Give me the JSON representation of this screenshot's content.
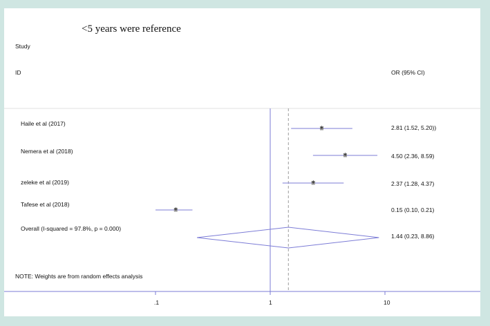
{
  "plot_title": "<5 years were reference",
  "header": {
    "study": "Study",
    "id": "ID",
    "effect": "OR (95% CI)"
  },
  "note": "NOTE: Weights are from random effects analysis",
  "colors": {
    "background": "#cfe6e2",
    "panel": "#ffffff",
    "line": "#7b7bd6",
    "overall_line": "#9a9a9a",
    "marker": "#111111"
  },
  "chart_data": {
    "type": "forest",
    "scale": "log",
    "null_line": 1,
    "overall_line": 1.44,
    "x_ticks": [
      {
        "value": 0.1,
        "label": ".1"
      },
      {
        "value": 1,
        "label": "1"
      },
      {
        "value": 10,
        "label": "10"
      }
    ],
    "studies": [
      {
        "name": "Haile et al  (2017)",
        "or": 2.81,
        "lower": 1.52,
        "upper": 5.2,
        "label": "2.81 (1.52, 5.20))"
      },
      {
        "name": "Nemera  et al (2018)",
        "or": 4.5,
        "lower": 2.36,
        "upper": 8.59,
        "label": "4.50 (2.36, 8.59)"
      },
      {
        "name": "zeleke et al (2019)",
        "or": 2.37,
        "lower": 1.28,
        "upper": 4.37,
        "label": "2.37 (1.28, 4.37)"
      },
      {
        "name": "Tafese et al (2018)",
        "or": 0.15,
        "lower": 0.1,
        "upper": 0.21,
        "label": "0.15 (0.10, 0.21)"
      }
    ],
    "overall": {
      "name": "Overall  (I-squared = 97.8%, p = 0.000)",
      "or": 1.44,
      "lower": 0.23,
      "upper": 8.86,
      "label": "1.44 (0.23, 8.86)"
    }
  }
}
